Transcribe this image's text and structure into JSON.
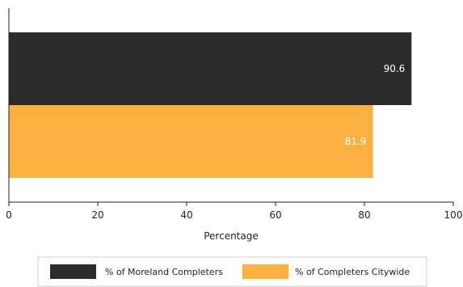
{
  "chart_data": {
    "type": "bar",
    "orientation": "horizontal",
    "title": "",
    "xlabel": "Percentage",
    "ylabel": "",
    "xlim": [
      0,
      100
    ],
    "x_ticks": [
      0,
      20,
      40,
      60,
      80,
      100
    ],
    "grid": false,
    "legend_position": "bottom",
    "series": [
      {
        "name": "% of Moreland Completers",
        "value": 90.6,
        "label": "90.6",
        "color": "#2b2b2b"
      },
      {
        "name": "% of Completers Citywide",
        "value": 81.9,
        "label": "81.9",
        "color": "#fbb040"
      }
    ]
  }
}
